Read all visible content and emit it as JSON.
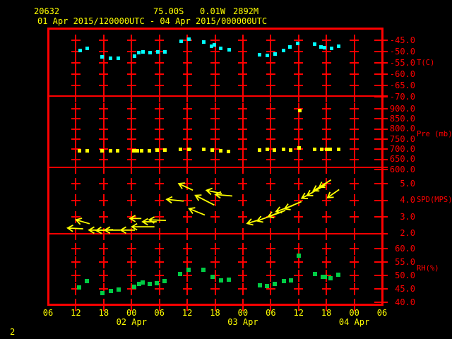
{
  "header": {
    "station_id": "20632",
    "latitude": "75.00S",
    "longitude": "0.01W",
    "elevation": "2892M",
    "time_range": "01 Apr 2015/120000UTC - 04 Apr 2015/000000UTC"
  },
  "page_number": "2",
  "colors": {
    "background": "#000000",
    "frame": "#ff0000",
    "axis_text": "#ff0000",
    "header_text": "#ffff00",
    "temperature_points": "#00ffff",
    "pressure_points": "#ffff00",
    "wind_arrows": "#ffff00",
    "humidity_points": "#00cc44"
  },
  "x_axis": {
    "hour_tick_labels": [
      "06",
      "12",
      "18",
      "00",
      "06",
      "12",
      "18",
      "00",
      "06",
      "12",
      "18",
      "00",
      "06"
    ],
    "date_labels": [
      {
        "text": "02 Apr",
        "tick_index": 3
      },
      {
        "text": "03 Apr",
        "tick_index": 7
      },
      {
        "text": "04 Apr",
        "tick_index": 11
      }
    ]
  },
  "y_axes": [
    {
      "panel": "temperature",
      "unit_label": "T(C)",
      "tick_labels": [
        "-45.0",
        "-50.0",
        "-55.0",
        "-60.0",
        "-65.0",
        "-70.0"
      ]
    },
    {
      "panel": "pressure",
      "unit_label": "Pre (mb)",
      "tick_labels": [
        "900.0",
        "850.0",
        "800.0",
        "750.0",
        "700.0",
        "650.0",
        "600.0"
      ]
    },
    {
      "panel": "wind_speed",
      "unit_label": "SPD(MPS)",
      "tick_labels": [
        "5.0",
        "4.0",
        "3.0",
        "2.0"
      ]
    },
    {
      "panel": "humidity",
      "unit_label": "RH(%)",
      "tick_labels": [
        "60.0",
        "55.0",
        "50.0",
        "45.0",
        "40.0"
      ]
    }
  ],
  "chart_data": [
    {
      "panel": "temperature",
      "type": "scatter",
      "title": "Air temperature",
      "ylabel": "T(C)",
      "ylim": [
        -70,
        -45
      ],
      "x_unit": "hours since 2015-04-01 00:00 UTC",
      "xlim": [
        6,
        78
      ],
      "x_tick_step_hours": 6,
      "points_tv": [
        [
          13.0,
          -49.6
        ],
        [
          14.5,
          -48.5
        ],
        [
          17.6,
          -52.4
        ],
        [
          19.5,
          -53.1
        ],
        [
          21.2,
          -52.9
        ],
        [
          24.7,
          -52.1
        ],
        [
          25.6,
          -50.6
        ],
        [
          26.5,
          -50.0
        ],
        [
          28.0,
          -50.4
        ],
        [
          29.6,
          -50.2
        ],
        [
          31.2,
          -50.0
        ],
        [
          34.7,
          -45.6
        ],
        [
          36.4,
          -44.6
        ],
        [
          39.6,
          -45.8
        ],
        [
          41.3,
          -47.5
        ],
        [
          41.8,
          -46.9
        ],
        [
          43.2,
          -48.7
        ],
        [
          45.0,
          -49.3
        ],
        [
          51.6,
          -51.3
        ],
        [
          53.3,
          -51.6
        ],
        [
          54.9,
          -51.2
        ],
        [
          56.8,
          -49.5
        ],
        [
          58.2,
          -47.9
        ],
        [
          59.8,
          -46.3
        ],
        [
          63.4,
          -46.6
        ],
        [
          64.9,
          -47.9
        ],
        [
          65.6,
          -48.2
        ],
        [
          67.1,
          -48.7
        ],
        [
          68.7,
          -47.6
        ]
      ]
    },
    {
      "panel": "pressure",
      "type": "scatter",
      "title": "Pressure",
      "ylabel": "Pre (mb)",
      "ylim": [
        600,
        900
      ],
      "x_unit": "hours since 2015-04-01 00:00 UTC",
      "xlim": [
        6,
        78
      ],
      "x_tick_step_hours": 6,
      "points_tv": [
        [
          12.7,
          693
        ],
        [
          14.4,
          693
        ],
        [
          17.6,
          691
        ],
        [
          19.5,
          691
        ],
        [
          21.0,
          693
        ],
        [
          24.5,
          693
        ],
        [
          25.3,
          693
        ],
        [
          26.1,
          693
        ],
        [
          27.9,
          693
        ],
        [
          29.5,
          695
        ],
        [
          31.2,
          697
        ],
        [
          34.5,
          698
        ],
        [
          36.3,
          698
        ],
        [
          39.5,
          699
        ],
        [
          41.4,
          696
        ],
        [
          43.2,
          693
        ],
        [
          44.9,
          690
        ],
        [
          51.6,
          695
        ],
        [
          53.2,
          701
        ],
        [
          54.8,
          697
        ],
        [
          56.7,
          699
        ],
        [
          58.3,
          697
        ],
        [
          60.1,
          705
        ],
        [
          60.2,
          891
        ],
        [
          63.4,
          700
        ],
        [
          65.0,
          700
        ],
        [
          66.0,
          700
        ],
        [
          66.8,
          700
        ],
        [
          68.7,
          701
        ]
      ]
    },
    {
      "panel": "wind_speed",
      "type": "scatter",
      "title": "Wind speed and direction arrows",
      "ylabel": "SPD(MPS)",
      "ylim": [
        2,
        5
      ],
      "x_unit": "hours since 2015-04-01 00:00 UTC",
      "xlim": [
        6,
        78
      ],
      "x_tick_step_hours": 6,
      "marker": "arrow",
      "points_tvdl_format": "[t_hours, speed_mps, arrow_rotation_deg_cw_from_east, arrow_length_px]",
      "points_tvdl": [
        [
          11.9,
          2.3,
          183,
          22
        ],
        [
          13.5,
          2.7,
          196,
          20
        ],
        [
          16.5,
          2.2,
          180,
          22
        ],
        [
          18.2,
          2.2,
          177,
          24
        ],
        [
          19.9,
          2.2,
          180,
          22
        ],
        [
          23.2,
          2.2,
          180,
          20
        ],
        [
          24.9,
          2.9,
          180,
          16
        ],
        [
          26.5,
          2.4,
          180,
          32
        ],
        [
          27.9,
          2.7,
          180,
          20
        ],
        [
          29.6,
          2.8,
          182,
          24
        ],
        [
          33.4,
          4.0,
          186,
          24
        ],
        [
          35.7,
          4.8,
          205,
          22
        ],
        [
          38.1,
          3.3,
          202,
          24
        ],
        [
          39.8,
          4.0,
          207,
          30
        ],
        [
          41.8,
          4.5,
          192,
          22
        ],
        [
          43.9,
          4.3,
          185,
          24
        ],
        [
          50.1,
          2.7,
          163,
          16
        ],
        [
          53.5,
          3.0,
          160,
          34
        ],
        [
          55.3,
          3.2,
          160,
          26
        ],
        [
          57.0,
          3.5,
          160,
          26
        ],
        [
          58.8,
          3.7,
          157,
          26
        ],
        [
          61.9,
          4.3,
          152,
          18
        ],
        [
          63.8,
          4.6,
          150,
          30
        ],
        [
          64.6,
          4.8,
          150,
          22
        ],
        [
          65.7,
          5.0,
          148,
          20
        ],
        [
          67.5,
          4.4,
          145,
          20
        ]
      ]
    },
    {
      "panel": "humidity",
      "type": "scatter",
      "title": "Relative humidity",
      "ylabel": "RH(%)",
      "ylim": [
        40,
        60
      ],
      "x_unit": "hours since 2015-04-01 00:00 UTC",
      "xlim": [
        6,
        78
      ],
      "x_tick_step_hours": 6,
      "points_tv": [
        [
          12.7,
          45.5
        ],
        [
          14.4,
          47.9
        ],
        [
          17.7,
          43.4
        ],
        [
          19.5,
          44.2
        ],
        [
          21.2,
          44.7
        ],
        [
          24.6,
          45.8
        ],
        [
          25.6,
          46.8
        ],
        [
          26.4,
          47.4
        ],
        [
          27.9,
          46.8
        ],
        [
          29.4,
          47.1
        ],
        [
          31.1,
          47.9
        ],
        [
          34.5,
          50.5
        ],
        [
          36.3,
          52.1
        ],
        [
          39.5,
          52.1
        ],
        [
          41.5,
          49.6
        ],
        [
          43.3,
          48.2
        ],
        [
          44.9,
          48.5
        ],
        [
          51.6,
          46.2
        ],
        [
          53.2,
          46.1
        ],
        [
          54.9,
          46.8
        ],
        [
          56.8,
          47.8
        ],
        [
          58.3,
          48.1
        ],
        [
          60.1,
          57.3
        ],
        [
          63.5,
          50.6
        ],
        [
          65.2,
          49.6
        ],
        [
          65.7,
          49.5
        ],
        [
          66.9,
          48.9
        ],
        [
          68.6,
          50.2
        ]
      ]
    }
  ]
}
